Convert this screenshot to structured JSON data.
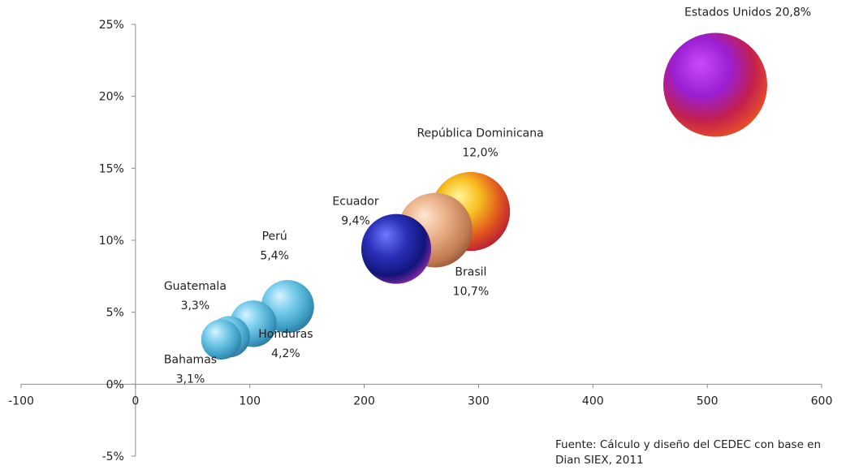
{
  "chart_data": {
    "type": "bubble",
    "title": "",
    "xlabel": "",
    "ylabel": "",
    "xlim": [
      -100,
      600
    ],
    "ylim": [
      -5,
      25
    ],
    "x_ticks": [
      -100,
      0,
      100,
      200,
      300,
      400,
      500,
      600
    ],
    "x_tick_labels": [
      "-100",
      "0",
      "100",
      "200",
      "300",
      "400",
      "500",
      "600"
    ],
    "y_ticks": [
      -5,
      0,
      5,
      10,
      15,
      20,
      25
    ],
    "y_tick_labels": [
      "-5%",
      "0%",
      "5%",
      "10%",
      "15%",
      "20%",
      "25%"
    ],
    "grid": false,
    "legend": "none",
    "points": [
      {
        "label": "Bahamas",
        "value_label": "3,1%",
        "x": 75,
        "y": 3.1,
        "size": 3.1,
        "color": "#5ab4d6"
      },
      {
        "label": "Guatemala",
        "value_label": "3,3%",
        "x": 82,
        "y": 3.3,
        "size": 3.3,
        "color": "#5ab4d6"
      },
      {
        "label": "Honduras",
        "value_label": "4,2%",
        "x": 103,
        "y": 4.2,
        "size": 4.2,
        "color": "#5ab4d6"
      },
      {
        "label": "Perú",
        "value_label": "5,4%",
        "x": 133,
        "y": 5.4,
        "size": 5.4,
        "color": "#5ab4d6"
      },
      {
        "label": "Ecuador",
        "value_label": "9,4%",
        "x": 228,
        "y": 9.4,
        "size": 9.4,
        "color": "#2b2fa8"
      },
      {
        "label": "Brasil",
        "value_label": "10,7%",
        "x": 262,
        "y": 10.7,
        "size": 10.7,
        "color": "#e8a47a"
      },
      {
        "label": "República Dominicana",
        "value_label": "12,0%",
        "x": 293,
        "y": 12.0,
        "size": 12.0,
        "color": "#f2b01e"
      },
      {
        "label": "Estados Unidos",
        "value_label": "20,8%",
        "x": 507,
        "y": 20.8,
        "size": 20.8,
        "color": "#b0206e"
      }
    ]
  },
  "source_note": "Fuente: Cálculo y diseño del CEDEC con base en Dian SIEX, 2011"
}
